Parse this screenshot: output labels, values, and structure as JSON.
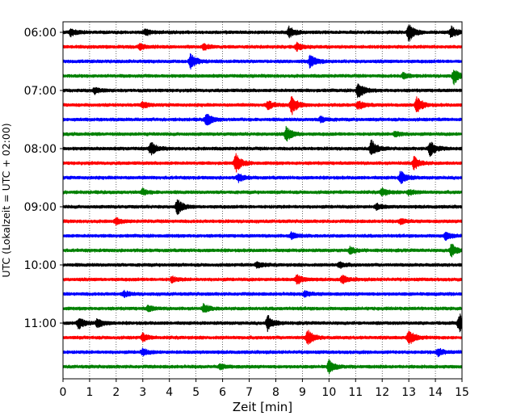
{
  "chart_data": {
    "type": "line",
    "title": "",
    "xlabel": "Zeit  [min]",
    "ylabel": "UTC (Lokalzeit = UTC + 02:00)",
    "xlim": [
      0,
      15
    ],
    "xticks": [
      "0",
      "1",
      "2",
      "3",
      "4",
      "5",
      "6",
      "7",
      "8",
      "9",
      "10",
      "11",
      "12",
      "13",
      "14",
      "15"
    ],
    "yticks": [
      "06:00",
      "07:00",
      "08:00",
      "09:00",
      "10:00",
      "11:00"
    ],
    "grid": "vertical dotted",
    "colors": [
      "#000000",
      "#ff0000",
      "#0000ff",
      "#008000"
    ],
    "rows": [
      {
        "label": "06:00",
        "color": "#000000",
        "bursts": [
          {
            "t": 0.3,
            "a": 0.4
          },
          {
            "t": 3.1,
            "a": 0.35
          },
          {
            "t": 8.5,
            "a": 0.6
          },
          {
            "t": 13.0,
            "a": 1.0
          },
          {
            "t": 14.6,
            "a": 0.6
          }
        ]
      },
      {
        "label": "06:15",
        "color": "#ff0000",
        "bursts": [
          {
            "t": 2.9,
            "a": 0.3
          },
          {
            "t": 5.3,
            "a": 0.3
          },
          {
            "t": 8.8,
            "a": 0.4
          }
        ]
      },
      {
        "label": "06:30",
        "color": "#0000ff",
        "bursts": [
          {
            "t": 4.8,
            "a": 0.8
          },
          {
            "t": 9.3,
            "a": 0.7
          }
        ]
      },
      {
        "label": "06:45",
        "color": "#008000",
        "bursts": [
          {
            "t": 12.8,
            "a": 0.3
          },
          {
            "t": 14.7,
            "a": 0.8
          }
        ]
      },
      {
        "label": "07:00",
        "color": "#000000",
        "bursts": [
          {
            "t": 1.2,
            "a": 0.3
          },
          {
            "t": 11.1,
            "a": 0.9
          }
        ]
      },
      {
        "label": "07:15",
        "color": "#ff0000",
        "bursts": [
          {
            "t": 3.0,
            "a": 0.35
          },
          {
            "t": 7.7,
            "a": 0.5
          },
          {
            "t": 8.6,
            "a": 1.0
          },
          {
            "t": 11.1,
            "a": 0.5
          },
          {
            "t": 13.3,
            "a": 0.9
          }
        ]
      },
      {
        "label": "07:30",
        "color": "#0000ff",
        "bursts": [
          {
            "t": 5.4,
            "a": 0.7
          },
          {
            "t": 9.7,
            "a": 0.3
          }
        ]
      },
      {
        "label": "07:45",
        "color": "#008000",
        "bursts": [
          {
            "t": 8.4,
            "a": 0.8
          },
          {
            "t": 12.5,
            "a": 0.3
          }
        ]
      },
      {
        "label": "08:00",
        "color": "#000000",
        "bursts": [
          {
            "t": 3.3,
            "a": 0.7
          },
          {
            "t": 11.6,
            "a": 0.9
          },
          {
            "t": 13.8,
            "a": 0.9
          }
        ]
      },
      {
        "label": "08:15",
        "color": "#ff0000",
        "bursts": [
          {
            "t": 6.5,
            "a": 1.0
          },
          {
            "t": 13.2,
            "a": 0.7
          }
        ]
      },
      {
        "label": "08:30",
        "color": "#0000ff",
        "bursts": [
          {
            "t": 6.6,
            "a": 0.4
          },
          {
            "t": 12.7,
            "a": 0.7
          }
        ]
      },
      {
        "label": "08:45",
        "color": "#008000",
        "bursts": [
          {
            "t": 3.0,
            "a": 0.3
          },
          {
            "t": 12.0,
            "a": 0.4
          },
          {
            "t": 13.0,
            "a": 0.3
          }
        ]
      },
      {
        "label": "09:00",
        "color": "#000000",
        "bursts": [
          {
            "t": 4.3,
            "a": 0.8
          },
          {
            "t": 11.8,
            "a": 0.3
          }
        ]
      },
      {
        "label": "09:15",
        "color": "#ff0000",
        "bursts": [
          {
            "t": 2.0,
            "a": 0.3
          },
          {
            "t": 12.7,
            "a": 0.3
          }
        ]
      },
      {
        "label": "09:30",
        "color": "#0000ff",
        "bursts": [
          {
            "t": 8.6,
            "a": 0.35
          },
          {
            "t": 14.4,
            "a": 0.4
          }
        ]
      },
      {
        "label": "09:45",
        "color": "#008000",
        "bursts": [
          {
            "t": 10.8,
            "a": 0.35
          },
          {
            "t": 14.6,
            "a": 0.7
          }
        ]
      },
      {
        "label": "10:00",
        "color": "#000000",
        "bursts": [
          {
            "t": 7.3,
            "a": 0.35
          },
          {
            "t": 10.4,
            "a": 0.3
          }
        ]
      },
      {
        "label": "10:15",
        "color": "#ff0000",
        "bursts": [
          {
            "t": 4.1,
            "a": 0.3
          },
          {
            "t": 8.8,
            "a": 0.5
          },
          {
            "t": 10.5,
            "a": 0.4
          }
        ]
      },
      {
        "label": "10:30",
        "color": "#0000ff",
        "bursts": [
          {
            "t": 2.3,
            "a": 0.3
          },
          {
            "t": 9.1,
            "a": 0.3
          }
        ]
      },
      {
        "label": "10:45",
        "color": "#008000",
        "bursts": [
          {
            "t": 5.3,
            "a": 0.45
          },
          {
            "t": 3.2,
            "a": 0.3
          }
        ]
      },
      {
        "label": "11:00",
        "color": "#000000",
        "bursts": [
          {
            "t": 0.6,
            "a": 0.6
          },
          {
            "t": 1.3,
            "a": 0.5
          },
          {
            "t": 7.7,
            "a": 0.8
          },
          {
            "t": 14.9,
            "a": 1.0
          }
        ]
      },
      {
        "label": "11:15",
        "color": "#ff0000",
        "bursts": [
          {
            "t": 3.0,
            "a": 0.4
          },
          {
            "t": 9.2,
            "a": 0.9
          },
          {
            "t": 13.0,
            "a": 0.9
          }
        ]
      },
      {
        "label": "11:30",
        "color": "#0000ff",
        "bursts": [
          {
            "t": 3.0,
            "a": 0.35
          },
          {
            "t": 14.1,
            "a": 0.4
          }
        ]
      },
      {
        "label": "11:45",
        "color": "#008000",
        "bursts": [
          {
            "t": 10.0,
            "a": 0.7
          },
          {
            "t": 5.9,
            "a": 0.25
          }
        ]
      }
    ]
  }
}
